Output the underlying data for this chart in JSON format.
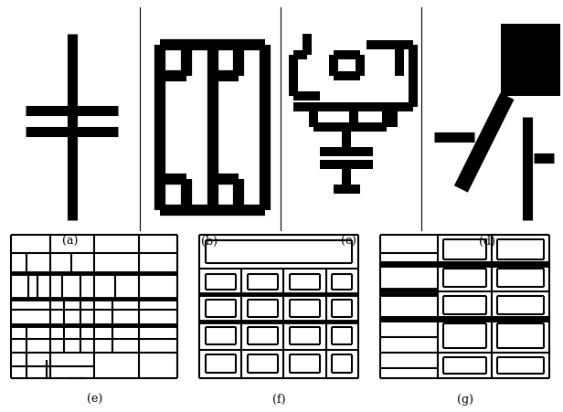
{
  "fig_width": 6.16,
  "fig_height": 4.52,
  "dpi": 100,
  "background": "#ffffff",
  "label_fontsize": 9,
  "labels": [
    "(a)",
    "(b)",
    "(c)",
    "(d)",
    "(e)",
    "(f)",
    "(g)"
  ]
}
